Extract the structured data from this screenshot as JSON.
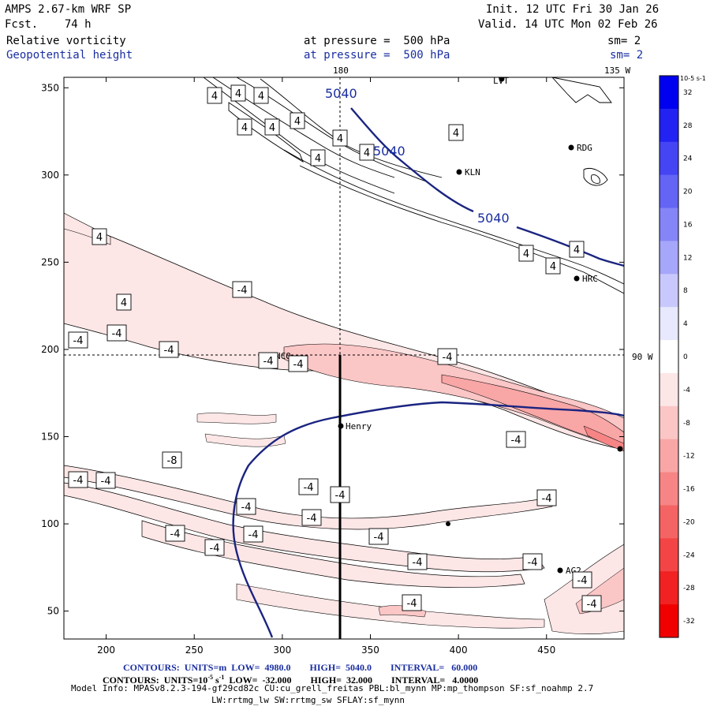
{
  "header": {
    "model": "AMPS 2.67-km WRF SP",
    "init": "Init. 12 UTC Fri 30 Jan 26",
    "fcst": "Fcst.    74 h",
    "valid": "Valid. 14 UTC Mon 02 Feb 26",
    "field1": "Relative vorticity",
    "field1_level": "at pressure =  500 hPa",
    "field1_sm": "sm= 2",
    "field2": "Geopotential height",
    "field2_level": "at pressure =  500 hPa",
    "field2_sm": "sm= 2"
  },
  "footer": {
    "line1": "CONTOURS:  UNITS=m  LOW=  4980.0        HIGH=  5040.0        INTERVAL=   60.000",
    "line2_pre": "CONTOURS:  UNITS=10",
    "line2_sup": "-5",
    "line2_post": " s",
    "line2_sup2": "-1",
    "line2_rest": "  LOW=  -32.000        HIGH=  32.000        INTERVAL=   4.0000",
    "model_info": "Model Info: MPASv8.2.3-194-gf29cd82c CU:cu_grell_freitas PBL:bl_mynn MP:mp_thompson SF:sf_noahmp 2.7",
    "model_info2": "LW:rrtmg_lw SW:rrtmg_sw SFLAY:sf_mynn"
  },
  "map_labels": {
    "lon180": "180",
    "lon135": "135 W",
    "lat90": "90 W"
  },
  "stations": [
    "LVT",
    "RDG",
    "KLN",
    "HRC",
    "NCO",
    "Henry",
    "AG2"
  ],
  "colorbar": {
    "unit": "10-5 s-1",
    "ticks": [
      "32",
      "28",
      "24",
      "20",
      "16",
      "12",
      "8",
      "4",
      "0",
      "-4",
      "-8",
      "-12",
      "-16",
      "-20",
      "-24",
      "-28",
      "-32"
    ],
    "colors": [
      "#0000f0",
      "#2222f2",
      "#4545f4",
      "#6464f5",
      "#8585f7",
      "#a6a6fa",
      "#c8c8fc",
      "#e8e8fe",
      "#ffffff",
      "#fde6e6",
      "#fbc6c6",
      "#f9a6a6",
      "#f78585",
      "#f56464",
      "#f34545",
      "#f22222",
      "#f00000"
    ]
  },
  "chart_data": {
    "type": "contour",
    "x_ticks": [
      200,
      250,
      300,
      350,
      400,
      450
    ],
    "y_ticks": [
      50,
      100,
      150,
      200,
      250,
      300,
      350
    ],
    "xlim": [
      176,
      494
    ],
    "ylim": [
      34,
      356
    ],
    "height_contour_labels": [
      "5040",
      "5040",
      "5040"
    ],
    "vorticity_labels": [
      "4",
      "4",
      "4",
      "4",
      "4",
      "4",
      "4",
      "4",
      "4",
      "4",
      "4",
      "4",
      "4",
      "4",
      "4",
      "-4",
      "-4",
      "-4",
      "-4",
      "-4",
      "-4",
      "-4",
      "-4",
      "-8",
      "-4",
      "-4",
      "-4",
      "-4",
      "-4",
      "-4",
      "-4",
      "-4",
      "-4",
      "-4",
      "-4",
      "-4",
      "-4",
      "-4",
      "-4",
      "-4",
      "-8"
    ],
    "section_line": {
      "x": 334,
      "y_from": 34,
      "y_to": 196
    }
  }
}
